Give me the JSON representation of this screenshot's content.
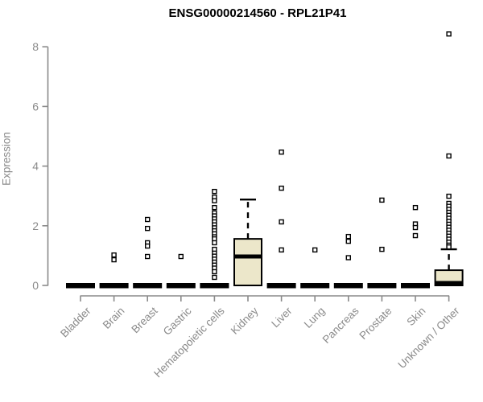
{
  "title": "ENSG00000214560 - RPL21P41",
  "chart_data": {
    "type": "boxplot",
    "title": "ENSG00000214560 - RPL21P41",
    "xlabel": "",
    "ylabel": "Expression",
    "ylim": [
      0,
      8.6
    ],
    "yticks": [
      0,
      2,
      4,
      6,
      8
    ],
    "grid": false,
    "legend": "none",
    "axis_color": "#8a8a8a",
    "box_fill": "#ece7ca",
    "box_stroke": "#000000",
    "categories": [
      "Bladder",
      "Brain",
      "Breast",
      "Gastric",
      "Hematopoietic cells",
      "Kidney",
      "Liver",
      "Lung",
      "Pancreas",
      "Prostate",
      "Skin",
      "Unknown / Other"
    ],
    "series": [
      {
        "name": "Bladder",
        "q1": 0,
        "median": 0,
        "q3": 0,
        "whisker_low": 0,
        "whisker_high": 0,
        "outliers": []
      },
      {
        "name": "Brain",
        "q1": 0,
        "median": 0,
        "q3": 0,
        "whisker_low": 0,
        "whisker_high": 0,
        "outliers": [
          1.02,
          0.86
        ]
      },
      {
        "name": "Breast",
        "q1": 0,
        "median": 0,
        "q3": 0,
        "whisker_low": 0,
        "whisker_high": 0,
        "outliers": [
          2.21,
          1.91,
          1.43,
          1.32,
          0.97
        ]
      },
      {
        "name": "Gastric",
        "q1": 0,
        "median": 0,
        "q3": 0,
        "whisker_low": 0,
        "whisker_high": 0,
        "outliers": [
          0.97
        ]
      },
      {
        "name": "Hematopoietic cells",
        "q1": 0,
        "median": 0,
        "q3": 0,
        "whisker_low": 0,
        "whisker_high": 0,
        "outliers": [
          3.15,
          2.96,
          2.84,
          2.61,
          2.43,
          2.33,
          2.23,
          2.13,
          2.03,
          1.93,
          1.83,
          1.73,
          1.63,
          1.56,
          1.43,
          1.21,
          1.08,
          0.98,
          0.88,
          0.78,
          0.68,
          0.58,
          0.46,
          0.27
        ]
      },
      {
        "name": "Kidney",
        "q1": 0,
        "median": 0.97,
        "q3": 1.56,
        "whisker_low": 0,
        "whisker_high": 2.88,
        "outliers": []
      },
      {
        "name": "Liver",
        "q1": 0,
        "median": 0,
        "q3": 0,
        "whisker_low": 0,
        "whisker_high": 0,
        "outliers": [
          4.47,
          3.26,
          2.13,
          1.19
        ]
      },
      {
        "name": "Lung",
        "q1": 0,
        "median": 0,
        "q3": 0,
        "whisker_low": 0,
        "whisker_high": 0,
        "outliers": [
          1.19
        ]
      },
      {
        "name": "Pancreas",
        "q1": 0,
        "median": 0,
        "q3": 0,
        "whisker_low": 0,
        "whisker_high": 0,
        "outliers": [
          1.64,
          1.48,
          0.93
        ]
      },
      {
        "name": "Prostate",
        "q1": 0,
        "median": 0,
        "q3": 0,
        "whisker_low": 0,
        "whisker_high": 0,
        "outliers": [
          2.86,
          1.21
        ]
      },
      {
        "name": "Skin",
        "q1": 0,
        "median": 0,
        "q3": 0,
        "whisker_low": 0,
        "whisker_high": 0,
        "outliers": [
          2.61,
          2.06,
          1.94,
          1.67
        ]
      },
      {
        "name": "Unknown / Other",
        "q1": 0,
        "median": 0,
        "q3": 0.51,
        "whisker_low": 0,
        "whisker_high": 1.21,
        "outliers": [
          8.43,
          4.34,
          2.99,
          2.75,
          2.65,
          2.55,
          2.45,
          2.35,
          2.25,
          2.15,
          2.05,
          1.95,
          1.85,
          1.75,
          1.65,
          1.55,
          1.45,
          1.35,
          1.29
        ]
      }
    ]
  }
}
